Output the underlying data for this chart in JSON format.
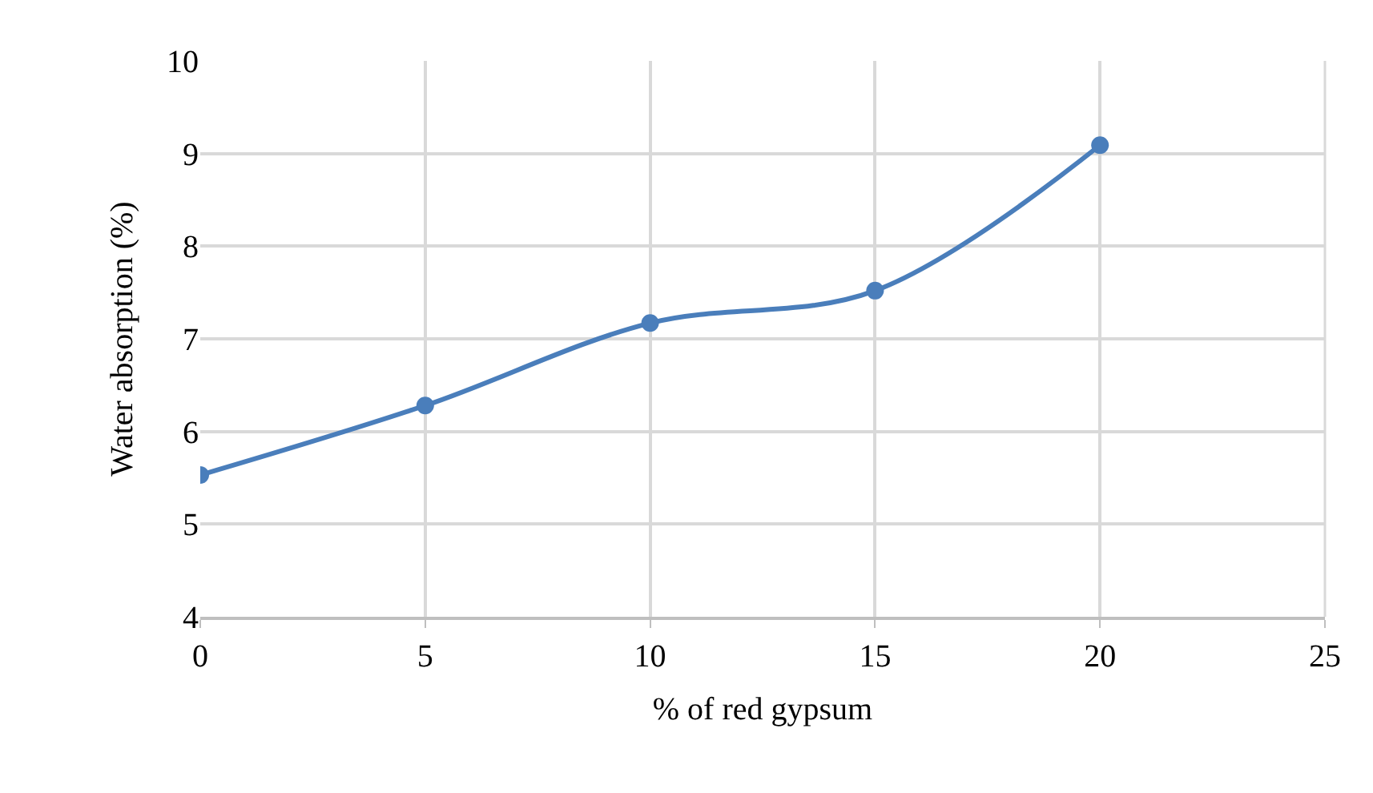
{
  "chart_data": {
    "type": "line",
    "xlabel": "% of red gypsum",
    "ylabel": "Water absorption (%)",
    "x": [
      0,
      5,
      10,
      15,
      20
    ],
    "series": [
      {
        "color": "#4a7ebb",
        "values": [
          5.53,
          6.28,
          7.17,
          7.52,
          9.09
        ]
      }
    ],
    "xlim": [
      0,
      25
    ],
    "xticks": [
      0,
      5,
      10,
      15,
      20,
      25
    ],
    "ylim": [
      4,
      10
    ],
    "yticks": [
      4,
      5,
      6,
      7,
      8,
      9,
      10
    ],
    "grid": true,
    "marker": "circle",
    "line_style": "solid"
  }
}
